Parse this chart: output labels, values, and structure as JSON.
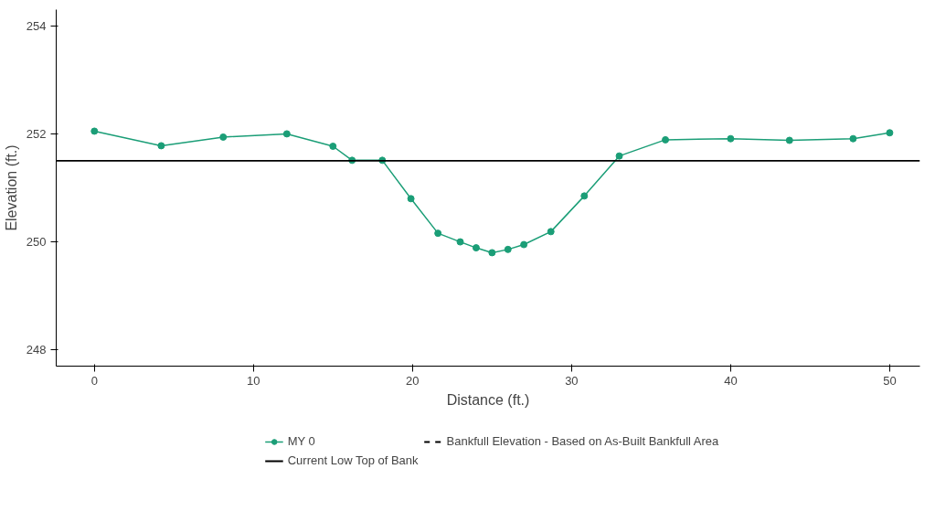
{
  "chart_data": {
    "type": "line",
    "xlabel": "Distance (ft.)",
    "ylabel": "Elevation (ft.)",
    "x": [
      0,
      4.2,
      8.1,
      12.1,
      15.0,
      16.2,
      18.1,
      19.9,
      21.6,
      23.0,
      24.0,
      25.0,
      26.0,
      27.0,
      28.7,
      30.8,
      33.0,
      35.9,
      40.0,
      43.7,
      47.7,
      50.0
    ],
    "series": [
      {
        "name": "MY 0",
        "color": "#1b9e77",
        "values": [
          252.05,
          251.78,
          251.94,
          252.0,
          251.77,
          251.51,
          251.51,
          250.8,
          250.16,
          250.0,
          249.89,
          249.8,
          249.86,
          249.95,
          250.19,
          250.85,
          251.59,
          251.89,
          251.91,
          251.88,
          251.91,
          252.02
        ]
      }
    ],
    "marker": "circle",
    "ref_lines": [
      {
        "axis": "y",
        "value": null,
        "label": "Bankfull Elevation - Based on As-Built Bankfull Area",
        "color": "#000000",
        "line_style": "dashed"
      },
      {
        "axis": "y",
        "value": 251.5,
        "label": "Current Low Top of Bank",
        "color": "#000000",
        "line_style": "solid"
      }
    ],
    "xlim": [
      -2.4,
      51.9
    ],
    "ylim": [
      247.7,
      254.3
    ],
    "xticks": [
      0,
      10,
      20,
      30,
      40,
      50
    ],
    "yticks": [
      248,
      250,
      252,
      254
    ],
    "grid": false,
    "legend": "bottom"
  }
}
